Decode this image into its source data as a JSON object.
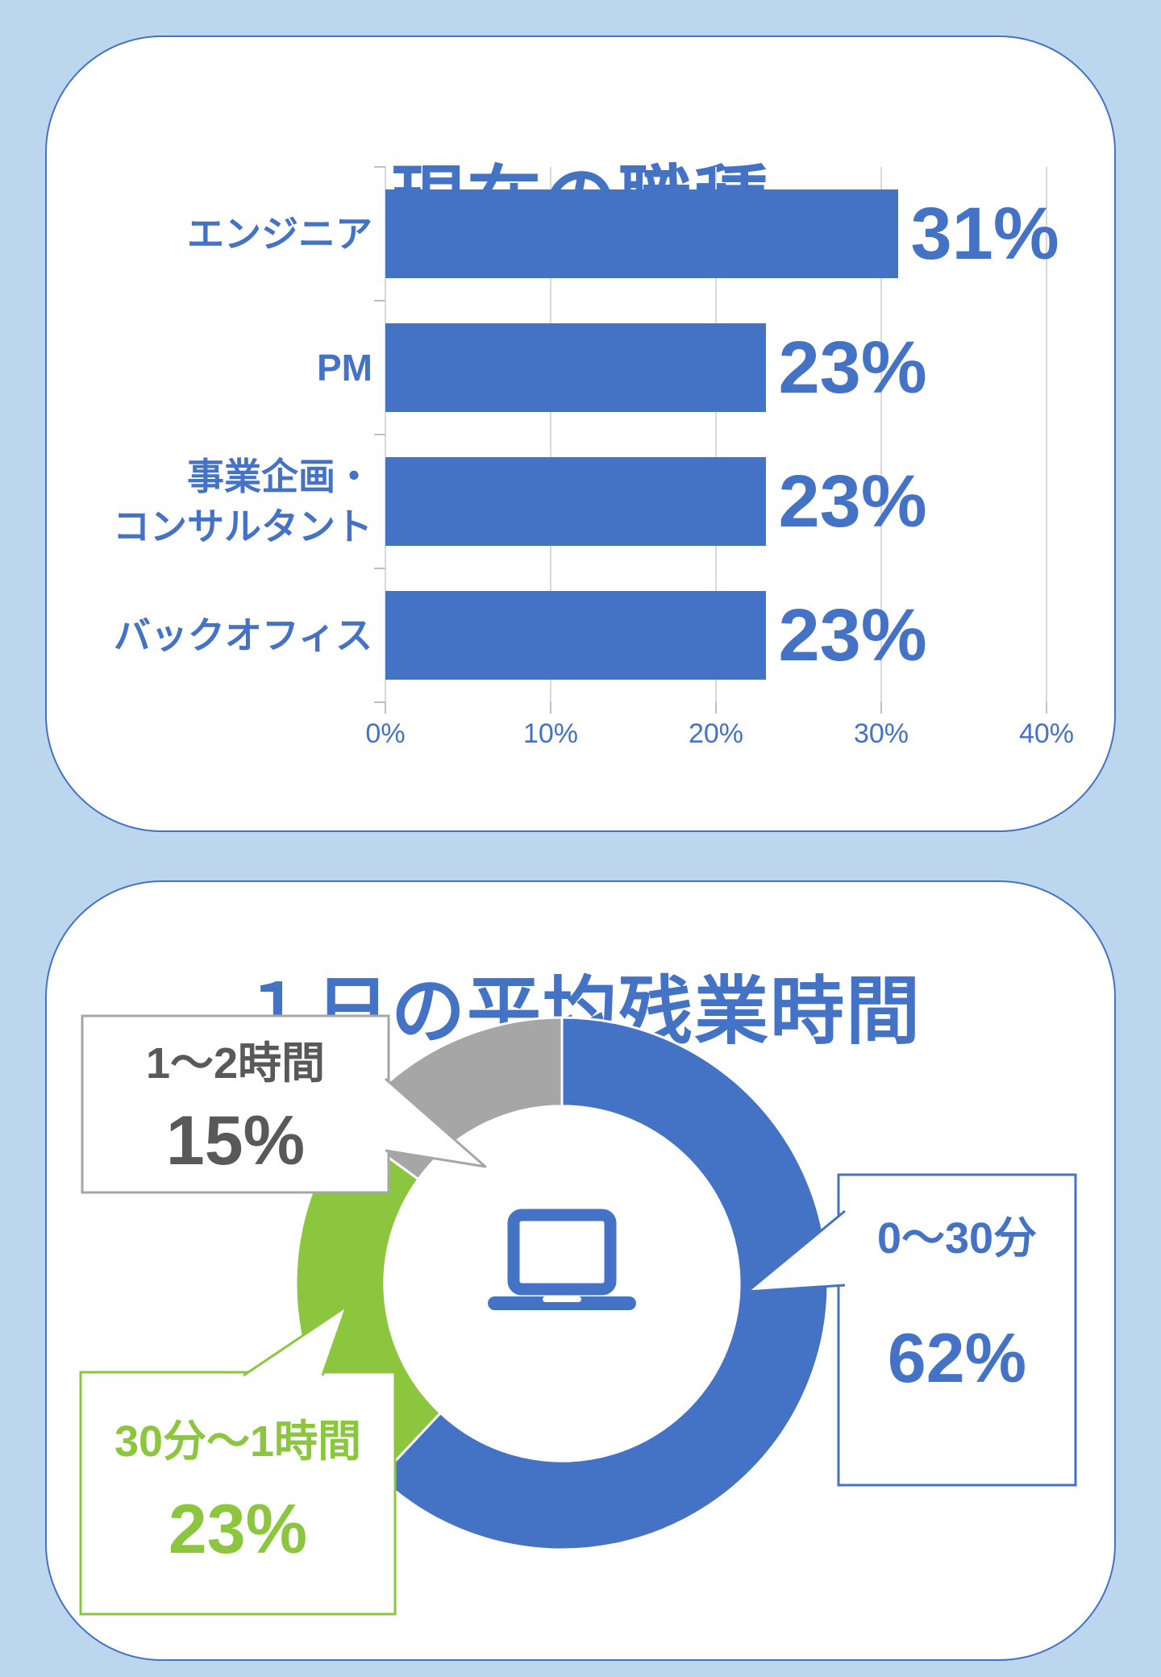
{
  "background": "#BCD6EE",
  "panel": {
    "fill": "#FFFFFF",
    "border_color": "#4472C4"
  },
  "chart_data": [
    {
      "type": "bar",
      "title": "現在の職種",
      "orientation": "horizontal",
      "categories": [
        "エンジニア",
        "PM",
        "事業企画・コンサルタント",
        "バックオフィス"
      ],
      "category_lines": [
        [
          "エンジニア"
        ],
        [
          "PM"
        ],
        [
          "事業企画・",
          "コンサルタント"
        ],
        [
          "バックオフィス"
        ]
      ],
      "values": [
        31,
        23,
        23,
        23
      ],
      "data_labels": [
        "31%",
        "23%",
        "23%",
        "23%"
      ],
      "x_ticks": [
        {
          "value": 0,
          "label": "0%"
        },
        {
          "value": 10,
          "label": "10%"
        },
        {
          "value": 20,
          "label": "20%"
        },
        {
          "value": 30,
          "label": "30%"
        },
        {
          "value": 40,
          "label": "40%"
        }
      ],
      "xlim": [
        0,
        40
      ],
      "grid": true,
      "legend": "none",
      "colors": {
        "bar": "#4472C4",
        "category_label": "#4472C4",
        "data_label": "#4472C4",
        "tick_label": "#4472C4",
        "gridline": "#D9D9D9",
        "tick_mark": "#BFBFBF"
      }
    },
    {
      "type": "donut",
      "title": "１日の平均残業時間",
      "start_angle_deg": 0,
      "direction": "clockwise",
      "inner_radius_ratio": 0.667,
      "segments": [
        {
          "label": "0〜30分",
          "value": 62,
          "value_label": "62%",
          "color": "#4472C4",
          "text_color": "#4472C4",
          "border_color": "#4472C4"
        },
        {
          "label": "30分〜1時間",
          "value": 23,
          "value_label": "23%",
          "color": "#8CC63F",
          "text_color": "#8CC63F",
          "border_color": "#8CC63F"
        },
        {
          "label": "1〜2時間",
          "value": 15,
          "value_label": "15%",
          "color": "#A6A6A6",
          "text_color": "#595959",
          "border_color": "#A6A6A6"
        }
      ],
      "segment_border_color": "#FFFFFF",
      "center_icon": "laptop-icon",
      "icon_color": "#4472C4",
      "legend_position": "callouts"
    }
  ]
}
